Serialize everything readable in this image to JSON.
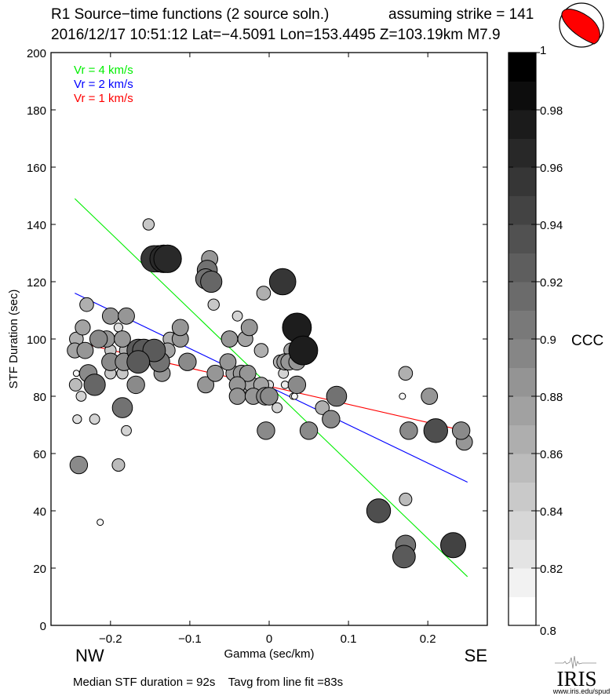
{
  "header": {
    "title": "R1 Source−time functions (2 source soln.)",
    "strike": "assuming strike = 141",
    "event": "2016/12/17 10:51:12  Lat=−4.5091 Lon=153.4495  Z=103.19km  M7.9"
  },
  "footer": {
    "summary": "Median STF duration = 92s    Tavg from line fit =83s",
    "logo_text": "IRIS",
    "logo_url": "www.iris.edu/spud"
  },
  "colors": {
    "vr4": "#00ee00",
    "vr2": "#0000ff",
    "vr1": "#ff0000",
    "beachball": "#ff0000"
  },
  "chart_data": {
    "type": "scatter",
    "xlabel": "Gamma (sec/km)",
    "ylabel": "STF Duration (sec)",
    "xlim": [
      -0.275,
      0.275
    ],
    "ylim": [
      0,
      200
    ],
    "xticks": [
      -0.2,
      -0.1,
      0,
      0.1,
      0.2
    ],
    "xtick_labels": [
      "−0.2",
      "−0.1",
      "0",
      "0.1",
      "0.2"
    ],
    "yticks": [
      0,
      20,
      40,
      60,
      80,
      100,
      120,
      140,
      160,
      180,
      200
    ],
    "ytick_labels": [
      "0",
      "20",
      "40",
      "60",
      "80",
      "100",
      "120",
      "140",
      "160",
      "180",
      "200"
    ],
    "direction_left": "NW",
    "direction_right": "SE",
    "grid": false,
    "legend": [
      {
        "label": "Vr = 4 km/s",
        "color": "#00ee00"
      },
      {
        "label": "Vr = 2 km/s",
        "color": "#0000ff"
      },
      {
        "label": "Vr = 1 km/s",
        "color": "#ff0000"
      }
    ],
    "legend_position": "top-left",
    "lines": [
      {
        "name": "Vr = 4 km/s",
        "color": "#00ee00",
        "x": [
          -0.245,
          0.25
        ],
        "y": [
          149,
          17
        ]
      },
      {
        "name": "Vr = 2 km/s",
        "color": "#0000ff",
        "x": [
          -0.245,
          0.25
        ],
        "y": [
          116,
          50
        ]
      },
      {
        "name": "Vr = 1 km/s",
        "color": "#ff0000",
        "x": [
          -0.245,
          0.245
        ],
        "y": [
          99,
          68
        ]
      }
    ],
    "colorbar": {
      "label": "CCC",
      "range": [
        0.8,
        1.0
      ],
      "ticks": [
        0.8,
        0.82,
        0.84,
        0.86,
        0.88,
        0.9,
        0.92,
        0.94,
        0.96,
        0.98,
        1
      ],
      "tick_labels": [
        "0.8",
        "0.82",
        "0.84",
        "0.86",
        "0.88",
        "0.9",
        "0.92",
        "0.94",
        "0.96",
        "0.98",
        "1"
      ],
      "levels": 20
    },
    "points": [
      {
        "x": -0.152,
        "y": 140,
        "ccc": 0.84
      },
      {
        "x": -0.14,
        "y": 128,
        "ccc": 0.96
      },
      {
        "x": -0.133,
        "y": 128,
        "ccc": 0.97
      },
      {
        "x": -0.128,
        "y": 128,
        "ccc": 0.97
      },
      {
        "x": -0.145,
        "y": 128,
        "ccc": 0.96
      },
      {
        "x": -0.075,
        "y": 128,
        "ccc": 0.88
      },
      {
        "x": -0.078,
        "y": 124,
        "ccc": 0.91
      },
      {
        "x": -0.073,
        "y": 120,
        "ccc": 0.92
      },
      {
        "x": -0.08,
        "y": 121,
        "ccc": 0.91
      },
      {
        "x": -0.07,
        "y": 112,
        "ccc": 0.84
      },
      {
        "x": 0.017,
        "y": 120,
        "ccc": 0.96
      },
      {
        "x": -0.007,
        "y": 116,
        "ccc": 0.86
      },
      {
        "x": 0.035,
        "y": 104,
        "ccc": 0.98
      },
      {
        "x": 0.043,
        "y": 96,
        "ccc": 0.98
      },
      {
        "x": -0.04,
        "y": 108,
        "ccc": 0.83
      },
      {
        "x": -0.025,
        "y": 104,
        "ccc": 0.88
      },
      {
        "x": -0.05,
        "y": 100,
        "ccc": 0.88
      },
      {
        "x": -0.03,
        "y": 100,
        "ccc": 0.87
      },
      {
        "x": -0.031,
        "y": 100,
        "ccc": 0.85
      },
      {
        "x": -0.01,
        "y": 96,
        "ccc": 0.86
      },
      {
        "x": 0.028,
        "y": 96,
        "ccc": 0.87
      },
      {
        "x": 0.02,
        "y": 92,
        "ccc": 0.88
      },
      {
        "x": 0.014,
        "y": 92,
        "ccc": 0.86
      },
      {
        "x": 0.025,
        "y": 92,
        "ccc": 0.88
      },
      {
        "x": 0.035,
        "y": 92,
        "ccc": 0.88
      },
      {
        "x": 0.018,
        "y": 88,
        "ccc": 0.83
      },
      {
        "x": -0.23,
        "y": 112,
        "ccc": 0.86
      },
      {
        "x": -0.2,
        "y": 108,
        "ccc": 0.88
      },
      {
        "x": -0.18,
        "y": 108,
        "ccc": 0.88
      },
      {
        "x": -0.19,
        "y": 104,
        "ccc": 0.82
      },
      {
        "x": -0.235,
        "y": 104,
        "ccc": 0.87
      },
      {
        "x": -0.243,
        "y": 100,
        "ccc": 0.86
      },
      {
        "x": -0.245,
        "y": 96,
        "ccc": 0.87
      },
      {
        "x": -0.232,
        "y": 96,
        "ccc": 0.88
      },
      {
        "x": -0.215,
        "y": 100,
        "ccc": 0.89
      },
      {
        "x": -0.205,
        "y": 100,
        "ccc": 0.88
      },
      {
        "x": -0.185,
        "y": 100,
        "ccc": 0.88
      },
      {
        "x": -0.18,
        "y": 96,
        "ccc": 0.86
      },
      {
        "x": -0.165,
        "y": 96,
        "ccc": 0.93
      },
      {
        "x": -0.158,
        "y": 96,
        "ccc": 0.93
      },
      {
        "x": -0.145,
        "y": 96,
        "ccc": 0.93
      },
      {
        "x": -0.128,
        "y": 96,
        "ccc": 0.87
      },
      {
        "x": -0.125,
        "y": 100,
        "ccc": 0.86
      },
      {
        "x": -0.112,
        "y": 100,
        "ccc": 0.88
      },
      {
        "x": -0.112,
        "y": 104,
        "ccc": 0.88
      },
      {
        "x": -0.2,
        "y": 96,
        "ccc": 0.84
      },
      {
        "x": -0.2,
        "y": 92,
        "ccc": 0.89
      },
      {
        "x": -0.183,
        "y": 92,
        "ccc": 0.89
      },
      {
        "x": -0.165,
        "y": 92,
        "ccc": 0.93
      },
      {
        "x": -0.155,
        "y": 92,
        "ccc": 0.82
      },
      {
        "x": -0.138,
        "y": 92,
        "ccc": 0.91
      },
      {
        "x": -0.103,
        "y": 92,
        "ccc": 0.89
      },
      {
        "x": -0.2,
        "y": 88,
        "ccc": 0.84
      },
      {
        "x": -0.185,
        "y": 88,
        "ccc": 0.84
      },
      {
        "x": -0.135,
        "y": 88,
        "ccc": 0.88
      },
      {
        "x": -0.228,
        "y": 88,
        "ccc": 0.89
      },
      {
        "x": -0.243,
        "y": 88,
        "ccc": 0.8
      },
      {
        "x": -0.244,
        "y": 84,
        "ccc": 0.85
      },
      {
        "x": -0.245,
        "y": 84,
        "ccc": 0.8
      },
      {
        "x": -0.237,
        "y": 80,
        "ccc": 0.83
      },
      {
        "x": -0.22,
        "y": 84,
        "ccc": 0.92
      },
      {
        "x": -0.168,
        "y": 84,
        "ccc": 0.89
      },
      {
        "x": -0.08,
        "y": 84,
        "ccc": 0.88
      },
      {
        "x": -0.068,
        "y": 88,
        "ccc": 0.88
      },
      {
        "x": -0.045,
        "y": 88,
        "ccc": 0.87
      },
      {
        "x": -0.052,
        "y": 92,
        "ccc": 0.88
      },
      {
        "x": -0.035,
        "y": 88,
        "ccc": 0.88
      },
      {
        "x": -0.027,
        "y": 88,
        "ccc": 0.88
      },
      {
        "x": -0.032,
        "y": 84,
        "ccc": 0.87
      },
      {
        "x": -0.04,
        "y": 84,
        "ccc": 0.88
      },
      {
        "x": -0.022,
        "y": 84,
        "ccc": 0.87
      },
      {
        "x": -0.01,
        "y": 84,
        "ccc": 0.87
      },
      {
        "x": 0.0,
        "y": 84,
        "ccc": 0.82
      },
      {
        "x": 0.02,
        "y": 84,
        "ccc": 0.81
      },
      {
        "x": 0.035,
        "y": 84,
        "ccc": 0.89
      },
      {
        "x": 0.03,
        "y": 80,
        "ccc": 0.8
      },
      {
        "x": 0.032,
        "y": 80,
        "ccc": 0.8
      },
      {
        "x": -0.04,
        "y": 80,
        "ccc": 0.88
      },
      {
        "x": -0.02,
        "y": 80,
        "ccc": 0.88
      },
      {
        "x": -0.005,
        "y": 80,
        "ccc": 0.89
      },
      {
        "x": 0.0,
        "y": 80,
        "ccc": 0.89
      },
      {
        "x": 0.01,
        "y": 76,
        "ccc": 0.83
      },
      {
        "x": -0.185,
        "y": 76,
        "ccc": 0.91
      },
      {
        "x": -0.187,
        "y": 76,
        "ccc": 0.84
      },
      {
        "x": -0.18,
        "y": 68,
        "ccc": 0.83
      },
      {
        "x": -0.242,
        "y": 72,
        "ccc": 0.82
      },
      {
        "x": -0.22,
        "y": 72,
        "ccc": 0.83
      },
      {
        "x": -0.24,
        "y": 56,
        "ccc": 0.89
      },
      {
        "x": -0.19,
        "y": 56,
        "ccc": 0.85
      },
      {
        "x": -0.213,
        "y": 36,
        "ccc": 0.8
      },
      {
        "x": -0.004,
        "y": 68,
        "ccc": 0.89
      },
      {
        "x": 0.05,
        "y": 68,
        "ccc": 0.89
      },
      {
        "x": 0.067,
        "y": 76,
        "ccc": 0.86
      },
      {
        "x": 0.078,
        "y": 72,
        "ccc": 0.89
      },
      {
        "x": 0.085,
        "y": 80,
        "ccc": 0.91
      },
      {
        "x": 0.168,
        "y": 80,
        "ccc": 0.8
      },
      {
        "x": 0.172,
        "y": 88,
        "ccc": 0.86
      },
      {
        "x": 0.202,
        "y": 80,
        "ccc": 0.88
      },
      {
        "x": 0.176,
        "y": 68,
        "ccc": 0.89
      },
      {
        "x": 0.21,
        "y": 68,
        "ccc": 0.94
      },
      {
        "x": 0.242,
        "y": 68,
        "ccc": 0.89
      },
      {
        "x": 0.246,
        "y": 64,
        "ccc": 0.88
      },
      {
        "x": 0.172,
        "y": 44,
        "ccc": 0.85
      },
      {
        "x": 0.138,
        "y": 40,
        "ccc": 0.94
      },
      {
        "x": 0.172,
        "y": 28,
        "ccc": 0.91
      },
      {
        "x": 0.17,
        "y": 24,
        "ccc": 0.93
      },
      {
        "x": 0.232,
        "y": 28,
        "ccc": 0.95
      }
    ]
  }
}
